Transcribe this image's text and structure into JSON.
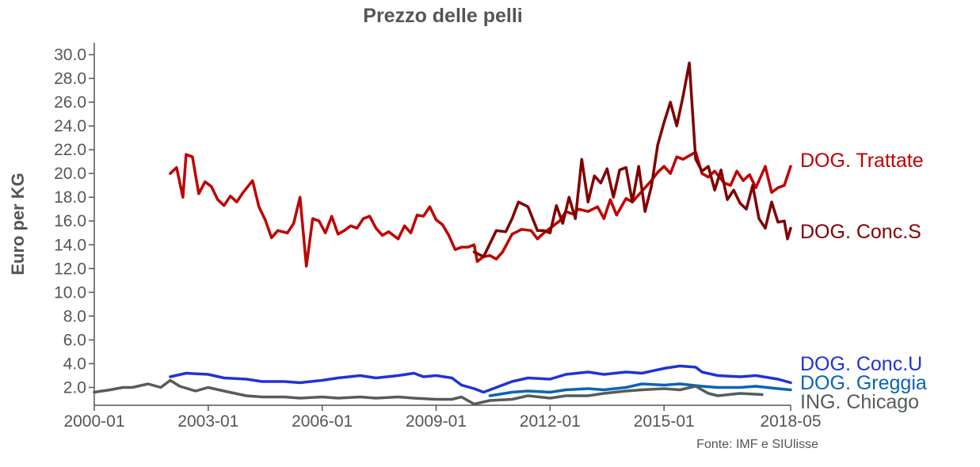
{
  "chart_data": {
    "type": "line",
    "title": "Prezzo delle pelli",
    "xlabel": "",
    "ylabel": "Euro per KG",
    "source": "Fonte: IMF e SIUlisse",
    "xlim": [
      "2000-01",
      "2018-05"
    ],
    "ylim": [
      0.5,
      31.0
    ],
    "x_ticks": [
      "2000-01",
      "2003-01",
      "2006-01",
      "2009-01",
      "2012-01",
      "2015-01",
      "2018-05"
    ],
    "y_ticks": [
      2.0,
      4.0,
      6.0,
      8.0,
      10.0,
      12.0,
      14.0,
      16.0,
      18.0,
      20.0,
      22.0,
      24.0,
      26.0,
      28.0,
      30.0
    ],
    "y_tick_labels": [
      "2.0",
      "4.0",
      "6.0",
      "8.0",
      "10.0",
      "12.0",
      "14.0",
      "16.0",
      "18.0",
      "20.0",
      "22.0",
      "24.0",
      "26.0",
      "28.0",
      "30.0"
    ],
    "grid": false,
    "legend": "right-end labels",
    "series": [
      {
        "name": "DOG. Trattate",
        "color": "#c00000",
        "points": [
          [
            "2002-01",
            20.0
          ],
          [
            "2002-03",
            20.5
          ],
          [
            "2002-05",
            18.0
          ],
          [
            "2002-06",
            21.6
          ],
          [
            "2002-08",
            21.4
          ],
          [
            "2002-10",
            18.3
          ],
          [
            "2002-12",
            19.3
          ],
          [
            "2003-02",
            18.9
          ],
          [
            "2003-04",
            17.8
          ],
          [
            "2003-06",
            17.3
          ],
          [
            "2003-08",
            18.1
          ],
          [
            "2003-10",
            17.6
          ],
          [
            "2003-12",
            18.4
          ],
          [
            "2004-03",
            19.4
          ],
          [
            "2004-05",
            17.2
          ],
          [
            "2004-07",
            16.1
          ],
          [
            "2004-09",
            14.6
          ],
          [
            "2004-11",
            15.2
          ],
          [
            "2005-02",
            15.0
          ],
          [
            "2005-04",
            15.8
          ],
          [
            "2005-06",
            18.0
          ],
          [
            "2005-08",
            12.2
          ],
          [
            "2005-10",
            16.2
          ],
          [
            "2005-12",
            16.0
          ],
          [
            "2006-02",
            15.0
          ],
          [
            "2006-04",
            16.4
          ],
          [
            "2006-06",
            14.9
          ],
          [
            "2006-08",
            15.2
          ],
          [
            "2006-10",
            15.6
          ],
          [
            "2006-12",
            15.4
          ],
          [
            "2007-02",
            16.2
          ],
          [
            "2007-04",
            16.4
          ],
          [
            "2007-06",
            15.4
          ],
          [
            "2007-08",
            14.8
          ],
          [
            "2007-10",
            15.1
          ],
          [
            "2008-01",
            14.5
          ],
          [
            "2008-03",
            15.6
          ],
          [
            "2008-05",
            15.0
          ],
          [
            "2008-07",
            16.5
          ],
          [
            "2008-09",
            16.4
          ],
          [
            "2008-11",
            17.2
          ],
          [
            "2009-01",
            16.1
          ],
          [
            "2009-03",
            15.7
          ],
          [
            "2009-05",
            14.8
          ],
          [
            "2009-07",
            13.6
          ],
          [
            "2009-09",
            13.8
          ],
          [
            "2009-11",
            13.8
          ],
          [
            "2010-01",
            14.0
          ],
          [
            "2010-02",
            12.6
          ],
          [
            "2010-04",
            13.0
          ],
          [
            "2010-06",
            13.1
          ],
          [
            "2010-08",
            12.8
          ],
          [
            "2010-10",
            13.4
          ],
          [
            "2011-01",
            14.9
          ],
          [
            "2011-04",
            15.3
          ],
          [
            "2011-07",
            15.2
          ],
          [
            "2011-09",
            14.5
          ],
          [
            "2011-11",
            15.0
          ],
          [
            "2012-01",
            15.4
          ],
          [
            "2012-04",
            16.0
          ],
          [
            "2012-06",
            16.8
          ],
          [
            "2012-08",
            16.6
          ],
          [
            "2012-10",
            17.0
          ],
          [
            "2013-01",
            16.8
          ],
          [
            "2013-04",
            17.2
          ],
          [
            "2013-06",
            16.2
          ],
          [
            "2013-08",
            17.8
          ],
          [
            "2013-10",
            16.5
          ],
          [
            "2014-01",
            17.9
          ],
          [
            "2014-03",
            17.6
          ],
          [
            "2014-05",
            18.2
          ],
          [
            "2014-07",
            18.8
          ],
          [
            "2014-09",
            19.4
          ],
          [
            "2014-11",
            20.1
          ],
          [
            "2015-01",
            20.6
          ],
          [
            "2015-03",
            20.0
          ],
          [
            "2015-05",
            21.4
          ],
          [
            "2015-07",
            21.2
          ],
          [
            "2015-09",
            21.5
          ],
          [
            "2015-11",
            21.8
          ],
          [
            "2016-01",
            20.0
          ],
          [
            "2016-03",
            19.7
          ],
          [
            "2016-05",
            20.2
          ],
          [
            "2016-08",
            19.2
          ],
          [
            "2016-10",
            19.0
          ],
          [
            "2016-12",
            20.2
          ],
          [
            "2017-02",
            19.4
          ],
          [
            "2017-04",
            19.9
          ],
          [
            "2017-06",
            18.8
          ],
          [
            "2017-09",
            20.6
          ],
          [
            "2017-11",
            18.4
          ],
          [
            "2018-01",
            18.8
          ],
          [
            "2018-03",
            19.0
          ],
          [
            "2018-05",
            20.6
          ]
        ]
      },
      {
        "name": "DOG. Conc.S",
        "color": "#800000",
        "points": [
          [
            "2010-01",
            13.4
          ],
          [
            "2010-04",
            13.0
          ],
          [
            "2010-08",
            15.2
          ],
          [
            "2010-11",
            15.1
          ],
          [
            "2011-01",
            16.2
          ],
          [
            "2011-03",
            17.6
          ],
          [
            "2011-06",
            17.2
          ],
          [
            "2011-09",
            15.2
          ],
          [
            "2011-11",
            15.2
          ],
          [
            "2012-01",
            15.0
          ],
          [
            "2012-03",
            17.3
          ],
          [
            "2012-05",
            15.8
          ],
          [
            "2012-07",
            18.0
          ],
          [
            "2012-09",
            16.2
          ],
          [
            "2012-11",
            21.2
          ],
          [
            "2013-01",
            17.6
          ],
          [
            "2013-03",
            19.8
          ],
          [
            "2013-05",
            19.2
          ],
          [
            "2013-07",
            20.4
          ],
          [
            "2013-09",
            18.0
          ],
          [
            "2013-11",
            20.3
          ],
          [
            "2014-01",
            20.5
          ],
          [
            "2014-03",
            17.6
          ],
          [
            "2014-05",
            20.6
          ],
          [
            "2014-07",
            16.8
          ],
          [
            "2014-09",
            18.9
          ],
          [
            "2014-11",
            22.4
          ],
          [
            "2015-01",
            24.3
          ],
          [
            "2015-03",
            26.0
          ],
          [
            "2015-05",
            24.0
          ],
          [
            "2015-07",
            26.5
          ],
          [
            "2015-09",
            29.3
          ],
          [
            "2015-11",
            21.2
          ],
          [
            "2016-01",
            20.2
          ],
          [
            "2016-03",
            20.6
          ],
          [
            "2016-05",
            18.6
          ],
          [
            "2016-07",
            20.3
          ],
          [
            "2016-09",
            17.8
          ],
          [
            "2016-11",
            18.6
          ],
          [
            "2017-01",
            17.5
          ],
          [
            "2017-03",
            17.0
          ],
          [
            "2017-05",
            19.0
          ],
          [
            "2017-07",
            16.2
          ],
          [
            "2017-09",
            15.4
          ],
          [
            "2017-11",
            17.6
          ],
          [
            "2018-01",
            15.9
          ],
          [
            "2018-03",
            16.0
          ],
          [
            "2018-04",
            14.5
          ],
          [
            "2018-05",
            15.4
          ]
        ]
      },
      {
        "name": "DOG. Conc.U",
        "color": "#1f33d6",
        "points": [
          [
            "2002-01",
            2.9
          ],
          [
            "2002-06",
            3.2
          ],
          [
            "2003-01",
            3.1
          ],
          [
            "2003-06",
            2.8
          ],
          [
            "2004-01",
            2.7
          ],
          [
            "2004-06",
            2.5
          ],
          [
            "2005-01",
            2.5
          ],
          [
            "2005-06",
            2.4
          ],
          [
            "2006-01",
            2.6
          ],
          [
            "2006-06",
            2.8
          ],
          [
            "2007-01",
            3.0
          ],
          [
            "2007-06",
            2.8
          ],
          [
            "2008-01",
            3.0
          ],
          [
            "2008-06",
            3.2
          ],
          [
            "2008-09",
            2.9
          ],
          [
            "2009-01",
            3.0
          ],
          [
            "2009-06",
            2.8
          ],
          [
            "2009-09",
            2.2
          ],
          [
            "2010-01",
            1.9
          ],
          [
            "2010-04",
            1.6
          ],
          [
            "2010-08",
            2.0
          ],
          [
            "2011-01",
            2.5
          ],
          [
            "2011-06",
            2.8
          ],
          [
            "2012-01",
            2.7
          ],
          [
            "2012-06",
            3.1
          ],
          [
            "2013-01",
            3.3
          ],
          [
            "2013-06",
            3.1
          ],
          [
            "2014-01",
            3.3
          ],
          [
            "2014-06",
            3.2
          ],
          [
            "2015-01",
            3.6
          ],
          [
            "2015-06",
            3.8
          ],
          [
            "2015-11",
            3.7
          ],
          [
            "2016-01",
            3.3
          ],
          [
            "2016-06",
            3.0
          ],
          [
            "2017-01",
            2.9
          ],
          [
            "2017-06",
            3.0
          ],
          [
            "2018-01",
            2.7
          ],
          [
            "2018-05",
            2.4
          ]
        ]
      },
      {
        "name": "DOG. Greggia",
        "color": "#0a64b4",
        "points": [
          [
            "2010-06",
            1.3
          ],
          [
            "2011-01",
            1.6
          ],
          [
            "2011-06",
            1.7
          ],
          [
            "2012-01",
            1.6
          ],
          [
            "2012-06",
            1.8
          ],
          [
            "2013-01",
            1.9
          ],
          [
            "2013-06",
            1.8
          ],
          [
            "2014-01",
            2.0
          ],
          [
            "2014-06",
            2.3
          ],
          [
            "2015-01",
            2.2
          ],
          [
            "2015-06",
            2.3
          ],
          [
            "2016-01",
            2.1
          ],
          [
            "2016-06",
            2.0
          ],
          [
            "2017-01",
            2.0
          ],
          [
            "2017-06",
            2.1
          ],
          [
            "2018-01",
            1.9
          ],
          [
            "2018-05",
            1.8
          ]
        ]
      },
      {
        "name": "ING. Chicago",
        "color": "#555c5c",
        "points": [
          [
            "2000-01",
            1.6
          ],
          [
            "2000-06",
            1.8
          ],
          [
            "2000-10",
            2.0
          ],
          [
            "2001-01",
            2.0
          ],
          [
            "2001-06",
            2.3
          ],
          [
            "2001-10",
            2.0
          ],
          [
            "2002-01",
            2.6
          ],
          [
            "2002-04",
            2.1
          ],
          [
            "2002-09",
            1.7
          ],
          [
            "2003-01",
            2.0
          ],
          [
            "2003-06",
            1.7
          ],
          [
            "2004-01",
            1.3
          ],
          [
            "2004-06",
            1.2
          ],
          [
            "2005-01",
            1.2
          ],
          [
            "2005-06",
            1.1
          ],
          [
            "2006-01",
            1.2
          ],
          [
            "2006-06",
            1.1
          ],
          [
            "2007-01",
            1.2
          ],
          [
            "2007-06",
            1.1
          ],
          [
            "2008-01",
            1.2
          ],
          [
            "2008-06",
            1.1
          ],
          [
            "2009-01",
            1.0
          ],
          [
            "2009-06",
            1.0
          ],
          [
            "2009-09",
            1.2
          ],
          [
            "2010-01",
            0.6
          ],
          [
            "2010-06",
            0.9
          ],
          [
            "2011-01",
            1.0
          ],
          [
            "2011-06",
            1.3
          ],
          [
            "2012-01",
            1.1
          ],
          [
            "2012-06",
            1.3
          ],
          [
            "2013-01",
            1.3
          ],
          [
            "2013-06",
            1.5
          ],
          [
            "2014-01",
            1.7
          ],
          [
            "2014-06",
            1.8
          ],
          [
            "2015-01",
            1.9
          ],
          [
            "2015-06",
            1.8
          ],
          [
            "2015-11",
            2.1
          ],
          [
            "2016-03",
            1.5
          ],
          [
            "2016-06",
            1.3
          ],
          [
            "2017-01",
            1.5
          ],
          [
            "2017-08",
            1.4
          ]
        ]
      }
    ]
  }
}
